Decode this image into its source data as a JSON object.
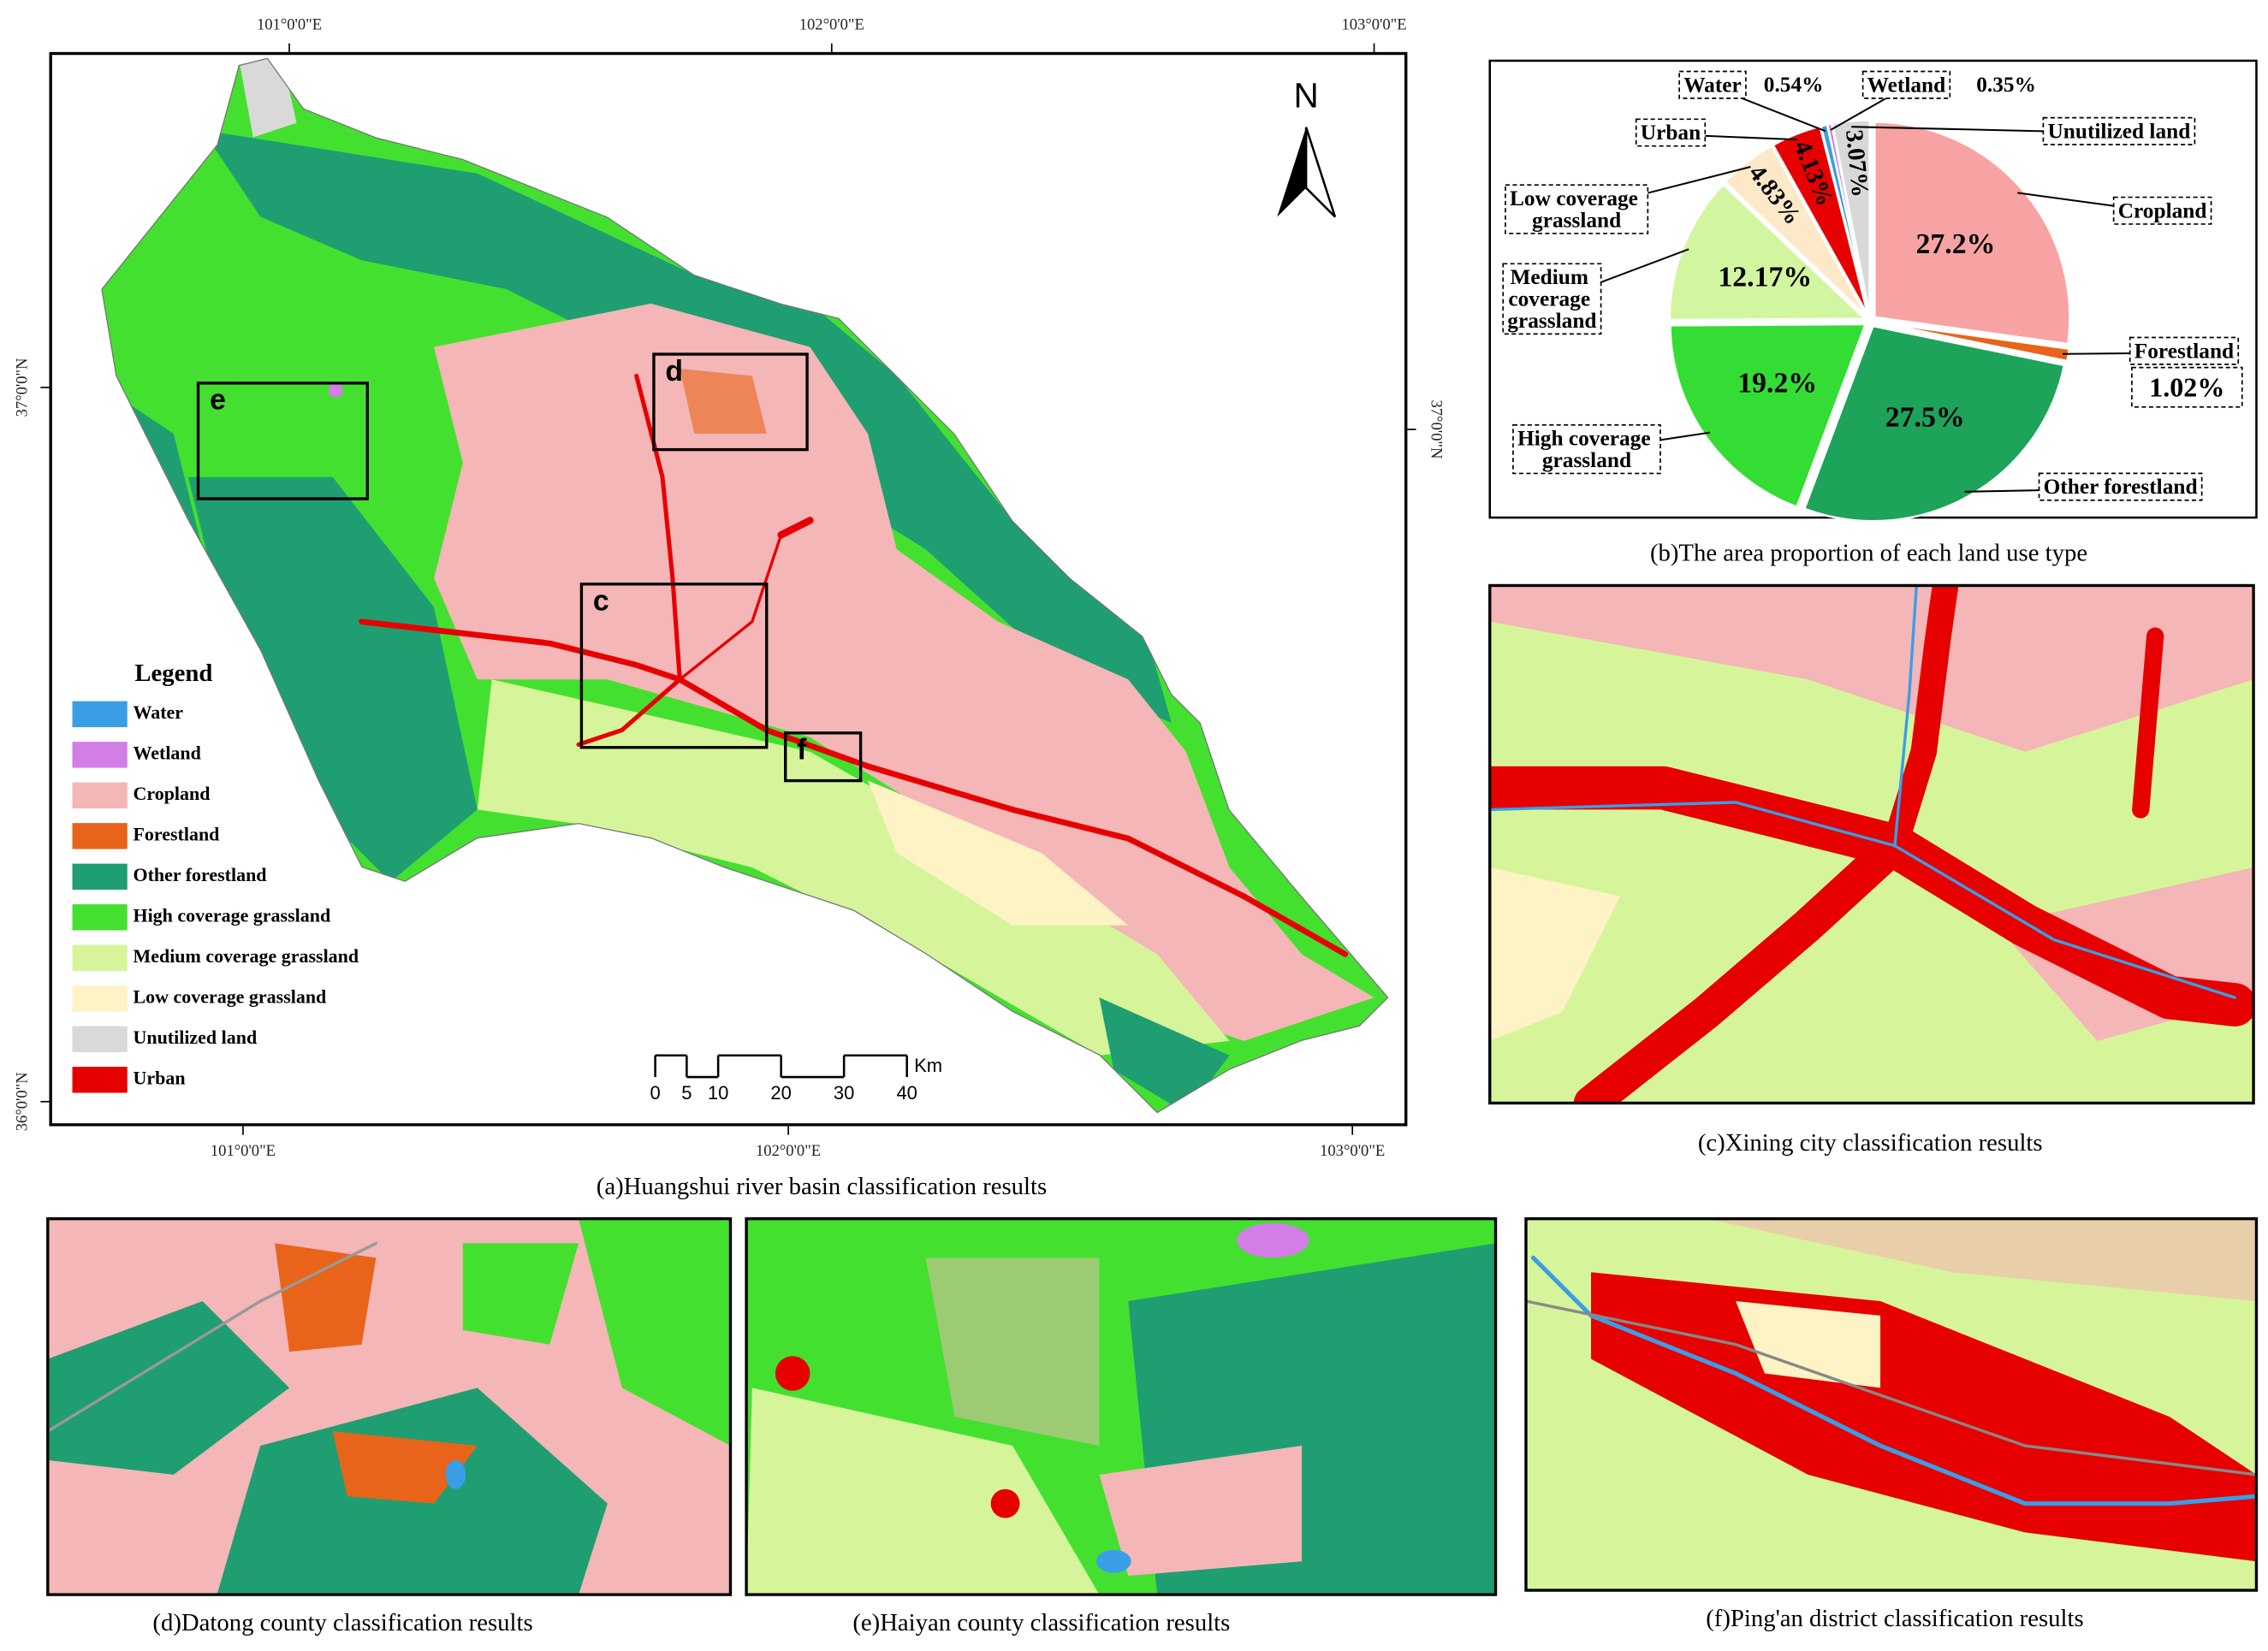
{
  "map": {
    "coordinates": {
      "top": [
        "101°0'0\"E",
        "102°0'0\"E",
        "103°0'0\"E"
      ],
      "bottom": [
        "101°0'0\"E",
        "102°0'0\"E",
        "103°0'0\"E"
      ],
      "left": [
        "37°0'0\"N",
        "36°0'0\"N"
      ],
      "right": [
        "37°0'0\"N"
      ]
    },
    "north": "N",
    "legend_title": "Legend",
    "legend": [
      {
        "label": "Water",
        "color": "#3a9ee6"
      },
      {
        "label": "Wetland",
        "color": "#d27ee6"
      },
      {
        "label": "Cropland",
        "color": "#f4b6b6"
      },
      {
        "label": "Forestland",
        "color": "#e8641a"
      },
      {
        "label": "Other forestland",
        "color": "#1f9e72"
      },
      {
        "label": "High coverage grassland",
        "color": "#44e030"
      },
      {
        "label": "Medium coverage grassland",
        "color": "#d6f59a"
      },
      {
        "label": "Low coverage grassland",
        "color": "#fdf3c4"
      },
      {
        "label": "Unutilized land",
        "color": "#d9d9d9"
      },
      {
        "label": "Urban",
        "color": "#e60000"
      }
    ],
    "insets": [
      "e",
      "d",
      "c",
      "f"
    ],
    "scale_bar": {
      "ticks": [
        0,
        5,
        10,
        20,
        30,
        40
      ],
      "unit": "Km"
    },
    "caption": "(a)Huangshui river basin classification results"
  },
  "chart_data": {
    "type": "pie",
    "title": "(b)The area proportion of each land use type",
    "categories": [
      "Cropland",
      "Forestland",
      "Other forestland",
      "High coverage grassland",
      "Medium coverage grassland",
      "Low coverage grassland",
      "Urban",
      "Water",
      "Wetland",
      "Unutilized land"
    ],
    "values": [
      27.2,
      1.02,
      27.5,
      19.2,
      12.17,
      4.83,
      4.13,
      0.54,
      0.35,
      3.07
    ],
    "value_labels": [
      "27.2%",
      "1.02%",
      "27.5%",
      "19.2%",
      "12.17%",
      "4.83%",
      "4.13%",
      "0.54%",
      "0.35%",
      "3.07%"
    ],
    "colors": [
      "#f7a3a3",
      "#e8641a",
      "#1ea35a",
      "#33dd33",
      "#d2f5a0",
      "#fde8c8",
      "#e60000",
      "#3aa0e0",
      "#d17de0",
      "#d8d8d8"
    ]
  },
  "panels": [
    {
      "caption": "(c)Xining city classification results"
    },
    {
      "caption": "(d)Datong county classification results"
    },
    {
      "caption": "(e)Haiyan county classification results"
    },
    {
      "caption": "(f)Ping'an district classification results"
    }
  ]
}
